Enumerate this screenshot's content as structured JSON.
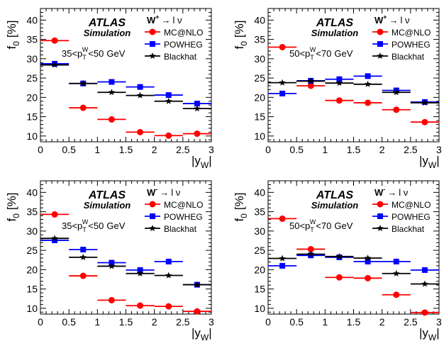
{
  "chart_data": [
    {
      "type": "scatter",
      "atlas_label": "ATLAS",
      "sim_label": "Simulation",
      "process": {
        "boson": "W",
        "charge": "+",
        "arrow": "→",
        "rest": "l ν"
      },
      "pt_range": {
        "lo": "35",
        "hi": "50",
        "pre": "<p",
        "sub": "T",
        "sup": "W",
        "unit": "GeV"
      },
      "ylabel": {
        "main": "f",
        "sub": "0",
        "unit": "[%]"
      },
      "xlabel": {
        "main": "|y",
        "sub": "W",
        "end": "|"
      },
      "xlim": [
        0,
        3
      ],
      "ylim": [
        8.5,
        43
      ],
      "xticks": [
        "0",
        "0.5",
        "1",
        "1.5",
        "2",
        "2.5",
        "3"
      ],
      "yticks": [
        "10",
        "15",
        "20",
        "25",
        "30",
        "35",
        "40"
      ],
      "legend_position": "top-right",
      "bins": [
        [
          0,
          0.5
        ],
        [
          0.5,
          1.0
        ],
        [
          1.0,
          1.5
        ],
        [
          1.5,
          2.0
        ],
        [
          2.0,
          2.5
        ],
        [
          2.5,
          3.0
        ]
      ],
      "series": [
        {
          "name": "MC@NLO",
          "color": "#ff0000",
          "marker": "circle",
          "values": [
            34.7,
            17.3,
            14.3,
            11.0,
            10.1,
            10.6
          ]
        },
        {
          "name": "POWHEG",
          "color": "#0000ff",
          "marker": "square",
          "values": [
            28.7,
            23.6,
            24.0,
            22.7,
            20.6,
            18.4
          ]
        },
        {
          "name": "Blackhat",
          "color": "#000000",
          "marker": "star",
          "values": [
            28.4,
            23.6,
            21.3,
            20.5,
            19.0,
            17.1
          ]
        }
      ]
    },
    {
      "type": "scatter",
      "atlas_label": "ATLAS",
      "sim_label": "Simulation",
      "process": {
        "boson": "W",
        "charge": "+",
        "arrow": "→",
        "rest": "l ν"
      },
      "pt_range": {
        "lo": "50",
        "hi": "70",
        "pre": "<p",
        "sub": "T",
        "sup": "W",
        "unit": "GeV"
      },
      "ylabel": {
        "main": "f",
        "sub": "0",
        "unit": "[%]"
      },
      "xlabel": {
        "main": "|y",
        "sub": "W",
        "end": "|"
      },
      "xlim": [
        0,
        3
      ],
      "ylim": [
        8.5,
        43
      ],
      "xticks": [
        "0",
        "0.5",
        "1",
        "1.5",
        "2",
        "2.5",
        "3"
      ],
      "yticks": [
        "10",
        "15",
        "20",
        "25",
        "30",
        "35",
        "40"
      ],
      "legend_position": "top-right",
      "bins": [
        [
          0,
          0.5
        ],
        [
          0.5,
          1.0
        ],
        [
          1.0,
          1.5
        ],
        [
          1.5,
          2.0
        ],
        [
          2.0,
          2.5
        ],
        [
          2.5,
          3.0
        ]
      ],
      "series": [
        {
          "name": "MC@NLO",
          "color": "#ff0000",
          "marker": "circle",
          "values": [
            33.0,
            23.0,
            19.2,
            18.6,
            16.8,
            13.6
          ]
        },
        {
          "name": "POWHEG",
          "color": "#0000ff",
          "marker": "square",
          "values": [
            21.0,
            24.3,
            24.7,
            25.5,
            21.8,
            18.8
          ]
        },
        {
          "name": "Blackhat",
          "color": "#000000",
          "marker": "star",
          "values": [
            23.8,
            24.2,
            23.7,
            23.4,
            21.3,
            18.6
          ]
        }
      ]
    },
    {
      "type": "scatter",
      "atlas_label": "ATLAS",
      "sim_label": "Simulation",
      "process": {
        "boson": "W",
        "charge": "-",
        "arrow": "→",
        "rest": "l ν"
      },
      "pt_range": {
        "lo": "35",
        "hi": "50",
        "pre": "<p",
        "sub": "T",
        "sup": "W",
        "unit": "GeV"
      },
      "ylabel": {
        "main": "f",
        "sub": "0",
        "unit": "[%]"
      },
      "xlabel": {
        "main": "|y",
        "sub": "W",
        "end": "|"
      },
      "xlim": [
        0,
        3
      ],
      "ylim": [
        8.5,
        43
      ],
      "xticks": [
        "0",
        "0.5",
        "1",
        "1.5",
        "2",
        "2.5",
        "3"
      ],
      "yticks": [
        "10",
        "15",
        "20",
        "25",
        "30",
        "35",
        "40"
      ],
      "legend_position": "top-right",
      "bins": [
        [
          0,
          0.5
        ],
        [
          0.5,
          1.0
        ],
        [
          1.0,
          1.5
        ],
        [
          1.5,
          2.0
        ],
        [
          2.0,
          2.5
        ],
        [
          2.5,
          3.0
        ]
      ],
      "series": [
        {
          "name": "MC@NLO",
          "color": "#ff0000",
          "marker": "circle",
          "values": [
            34.3,
            18.4,
            12.1,
            10.7,
            10.5,
            9.2
          ]
        },
        {
          "name": "POWHEG",
          "color": "#0000ff",
          "marker": "square",
          "values": [
            27.6,
            25.2,
            21.8,
            19.9,
            22.1,
            16.1
          ]
        },
        {
          "name": "Blackhat",
          "color": "#000000",
          "marker": "star",
          "values": [
            28.1,
            23.2,
            20.9,
            19.0,
            18.5,
            16.1
          ]
        }
      ]
    },
    {
      "type": "scatter",
      "atlas_label": "ATLAS",
      "sim_label": "Simulation",
      "process": {
        "boson": "W",
        "charge": "-",
        "arrow": "→",
        "rest": "l ν"
      },
      "pt_range": {
        "lo": "50",
        "hi": "70",
        "pre": "<p",
        "sub": "T",
        "sup": "W",
        "unit": "GeV"
      },
      "ylabel": {
        "main": "f",
        "sub": "0",
        "unit": "[%]"
      },
      "xlabel": {
        "main": "|y",
        "sub": "W",
        "end": "|"
      },
      "xlim": [
        0,
        3
      ],
      "ylim": [
        8.5,
        43
      ],
      "xticks": [
        "0",
        "0.5",
        "1",
        "1.5",
        "2",
        "2.5",
        "3"
      ],
      "yticks": [
        "10",
        "15",
        "20",
        "25",
        "30",
        "35",
        "40"
      ],
      "legend_position": "top-right",
      "bins": [
        [
          0,
          0.5
        ],
        [
          0.5,
          1.0
        ],
        [
          1.0,
          1.5
        ],
        [
          1.5,
          2.0
        ],
        [
          2.0,
          2.5
        ],
        [
          2.5,
          3.0
        ]
      ],
      "series": [
        {
          "name": "MC@NLO",
          "color": "#ff0000",
          "marker": "circle",
          "values": [
            33.2,
            25.3,
            18.0,
            17.8,
            13.5,
            8.9
          ]
        },
        {
          "name": "POWHEG",
          "color": "#0000ff",
          "marker": "square",
          "values": [
            21.0,
            23.7,
            23.2,
            22.1,
            22.1,
            19.9
          ]
        },
        {
          "name": "Blackhat",
          "color": "#000000",
          "marker": "star",
          "values": [
            22.9,
            24.0,
            23.4,
            23.0,
            19.0,
            16.3
          ]
        }
      ]
    }
  ]
}
